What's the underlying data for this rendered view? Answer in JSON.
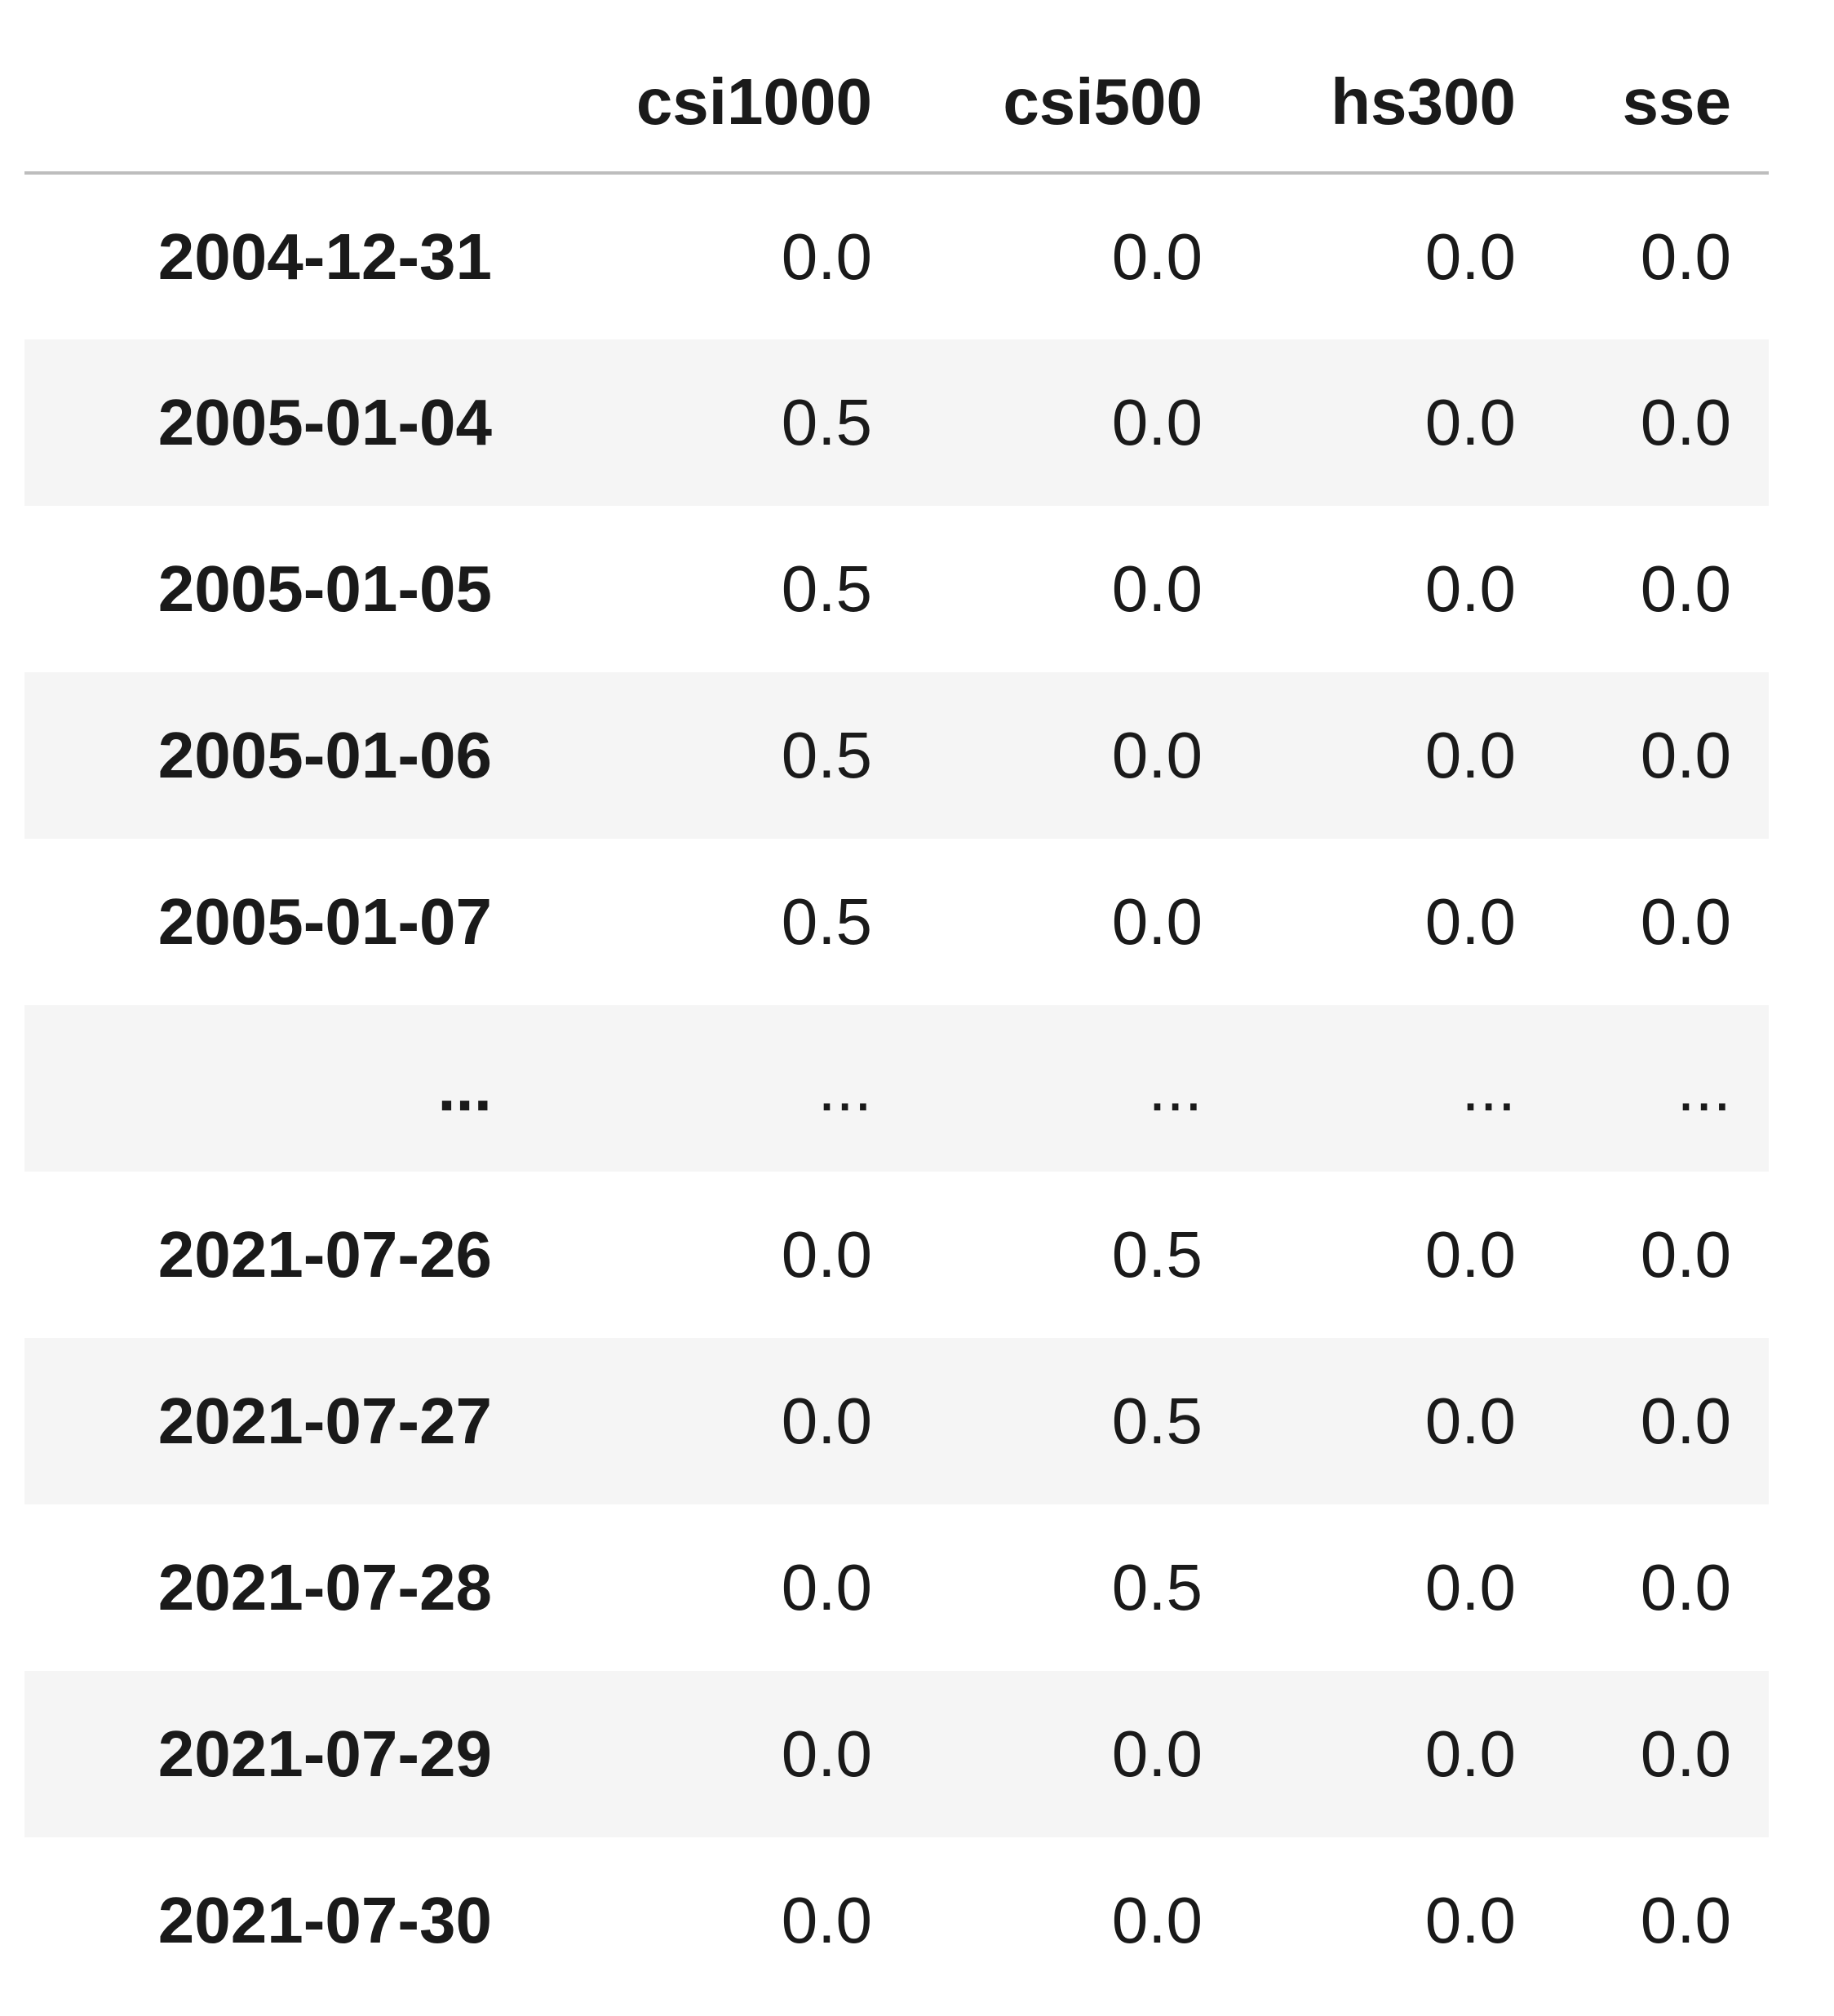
{
  "table": {
    "columns": [
      "csi1000",
      "csi500",
      "hs300",
      "sse"
    ],
    "rows": [
      {
        "index": "2004-12-31",
        "values": [
          "0.0",
          "0.0",
          "0.0",
          "0.0"
        ]
      },
      {
        "index": "2005-01-04",
        "values": [
          "0.5",
          "0.0",
          "0.0",
          "0.0"
        ]
      },
      {
        "index": "2005-01-05",
        "values": [
          "0.5",
          "0.0",
          "0.0",
          "0.0"
        ]
      },
      {
        "index": "2005-01-06",
        "values": [
          "0.5",
          "0.0",
          "0.0",
          "0.0"
        ]
      },
      {
        "index": "2005-01-07",
        "values": [
          "0.5",
          "0.0",
          "0.0",
          "0.0"
        ]
      },
      {
        "index": "...",
        "values": [
          "...",
          "...",
          "...",
          "..."
        ]
      },
      {
        "index": "2021-07-26",
        "values": [
          "0.0",
          "0.5",
          "0.0",
          "0.0"
        ]
      },
      {
        "index": "2021-07-27",
        "values": [
          "0.0",
          "0.5",
          "0.0",
          "0.0"
        ]
      },
      {
        "index": "2021-07-28",
        "values": [
          "0.0",
          "0.5",
          "0.0",
          "0.0"
        ]
      },
      {
        "index": "2021-07-29",
        "values": [
          "0.0",
          "0.0",
          "0.0",
          "0.0"
        ]
      },
      {
        "index": "2021-07-30",
        "values": [
          "0.0",
          "0.0",
          "0.0",
          "0.0"
        ]
      }
    ]
  }
}
